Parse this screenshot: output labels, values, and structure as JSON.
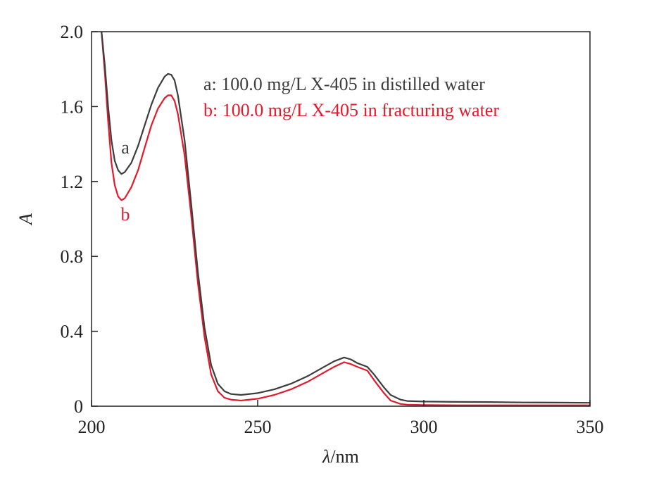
{
  "chart_data": {
    "type": "line",
    "xlabel_italic": "λ",
    "xlabel_unit": "/nm",
    "ylabel": "A",
    "xlim": [
      200,
      350
    ],
    "ylim": [
      0,
      2.0
    ],
    "xticks": [
      200,
      250,
      300,
      350
    ],
    "xtick_labels": [
      "200",
      "250",
      "300",
      "350"
    ],
    "yticks": [
      0,
      0.4,
      0.8,
      1.2,
      1.6,
      2.0
    ],
    "ytick_labels": [
      "0",
      "0.4",
      "0.8",
      "1.2",
      "1.6",
      "2.0"
    ],
    "grid": false,
    "legend_position": "top-right",
    "series": [
      {
        "name": "a: 100.0 mg/L X-405 in distilled water",
        "label": "a",
        "color": "#3d3d3d",
        "x": [
          203,
          204,
          205,
          206,
          207,
          208,
          209,
          210,
          212,
          214,
          216,
          218,
          220,
          222,
          223,
          224,
          225,
          226,
          228,
          230,
          232,
          234,
          236,
          238,
          240,
          242,
          245,
          250,
          255,
          260,
          265,
          270,
          273,
          276,
          278,
          280,
          283,
          285,
          288,
          290,
          293,
          295,
          300,
          310,
          320,
          330,
          340,
          350
        ],
        "y": [
          2.0,
          1.82,
          1.6,
          1.42,
          1.31,
          1.26,
          1.24,
          1.25,
          1.3,
          1.39,
          1.5,
          1.61,
          1.7,
          1.76,
          1.775,
          1.77,
          1.74,
          1.66,
          1.42,
          1.08,
          0.72,
          0.42,
          0.22,
          0.12,
          0.08,
          0.065,
          0.06,
          0.07,
          0.09,
          0.12,
          0.16,
          0.21,
          0.24,
          0.26,
          0.25,
          0.23,
          0.21,
          0.17,
          0.1,
          0.06,
          0.035,
          0.028,
          0.025,
          0.023,
          0.022,
          0.02,
          0.019,
          0.018
        ]
      },
      {
        "name": "b: 100.0 mg/L X-405 in fracturing water",
        "label": "b",
        "color": "#e31a2b",
        "x": [
          203,
          204,
          205,
          206,
          207,
          208,
          209,
          210,
          212,
          214,
          216,
          218,
          220,
          222,
          223,
          224,
          225,
          226,
          228,
          230,
          232,
          234,
          236,
          238,
          240,
          242,
          245,
          250,
          255,
          260,
          265,
          270,
          273,
          276,
          278,
          280,
          283,
          285,
          288,
          290,
          293,
          295,
          300,
          310,
          320,
          330,
          340,
          350
        ],
        "y": [
          2.0,
          1.78,
          1.52,
          1.3,
          1.18,
          1.12,
          1.1,
          1.11,
          1.17,
          1.26,
          1.38,
          1.5,
          1.59,
          1.645,
          1.66,
          1.66,
          1.63,
          1.56,
          1.34,
          1.02,
          0.66,
          0.37,
          0.17,
          0.08,
          0.045,
          0.035,
          0.03,
          0.04,
          0.06,
          0.09,
          0.13,
          0.18,
          0.21,
          0.235,
          0.225,
          0.21,
          0.19,
          0.14,
          0.07,
          0.03,
          0.012,
          0.008,
          0.006,
          0.005,
          0.005,
          0.005,
          0.005,
          0.005
        ]
      }
    ]
  }
}
